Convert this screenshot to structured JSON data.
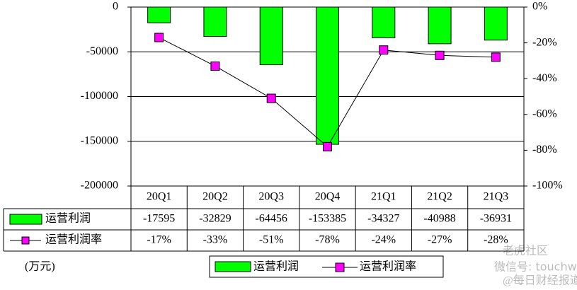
{
  "chart_data": {
    "type": "bar",
    "categories": [
      "20Q1",
      "20Q2",
      "20Q3",
      "20Q4",
      "21Q1",
      "21Q2",
      "21Q3"
    ],
    "series": [
      {
        "name": "运营利润",
        "color": "#00ff00",
        "values": [
          -17595,
          -32829,
          -64456,
          -153385,
          -34327,
          -40988,
          -36931
        ]
      },
      {
        "name": "运营利润率",
        "type": "line",
        "axis": "y2",
        "color": "#ff00ff",
        "values": [
          -17,
          -33,
          -51,
          -78,
          -24,
          -27,
          -28
        ],
        "value_labels": [
          "-17%",
          "-33%",
          "-51%",
          "-78%",
          "-24%",
          "-27%",
          "-28%"
        ]
      }
    ],
    "ylim": [
      -200000,
      0
    ],
    "yticks": [
      0,
      -50000,
      -100000,
      -150000,
      -200000
    ],
    "y2lim": [
      -100,
      0
    ],
    "y2ticks": [
      {
        "value": 0,
        "label": "0%"
      },
      {
        "value": -20,
        "label": "-20%"
      },
      {
        "value": -40,
        "label": "-40%"
      },
      {
        "value": -60,
        "label": "-60%"
      },
      {
        "value": -80,
        "label": "-80%"
      },
      {
        "value": -100,
        "label": "-100%"
      }
    ],
    "grid": true,
    "unit_label": "(万元)",
    "watermark": {
      "account": "微信号: touchweb",
      "brand": "老虎社区",
      "source": "@每日财经报道"
    }
  }
}
